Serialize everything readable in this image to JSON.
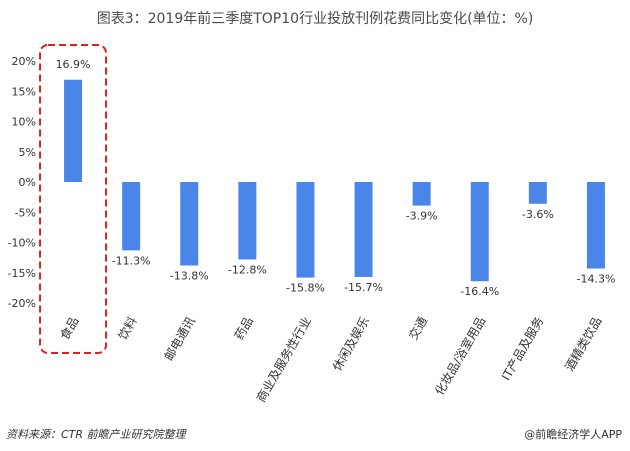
{
  "chart_data": {
    "type": "bar",
    "title": "图表3：2019年前三季度TOP10行业投放刊例花费同比变化(单位：%)",
    "categories": [
      "食品",
      "饮料",
      "邮电通讯",
      "药品",
      "商业及服务性行业",
      "休闲及娱乐",
      "交通",
      "化妆品/浴室用品",
      "IT产品及服务",
      "酒精类饮品"
    ],
    "values": [
      16.9,
      -11.3,
      -13.8,
      -12.8,
      -15.8,
      -15.7,
      -3.9,
      -16.4,
      -3.6,
      -14.3
    ],
    "value_labels": [
      "16.9%",
      "-11.3%",
      "-13.8%",
      "-12.8%",
      "-15.8%",
      "-15.7%",
      "-3.9%",
      "-16.4%",
      "-3.6%",
      "-14.3%"
    ],
    "ylim": [
      -20,
      20
    ],
    "yticks": [
      20,
      15,
      10,
      5,
      0,
      -5,
      -10,
      -15,
      -20
    ],
    "ytick_labels": [
      "20%",
      "15%",
      "10%",
      "5%",
      "0%",
      "-5%",
      "-10%",
      "-15%",
      "-20%"
    ],
    "grid": false,
    "highlight_category": "食品",
    "colors": {
      "bar": "#4a86e8",
      "highlight_box": "#e02020",
      "text": "#333333"
    }
  },
  "footer": {
    "source": "资料来源：CTR 前瞻产业研究院整理",
    "brand": "@前瞻经济学人APP"
  }
}
